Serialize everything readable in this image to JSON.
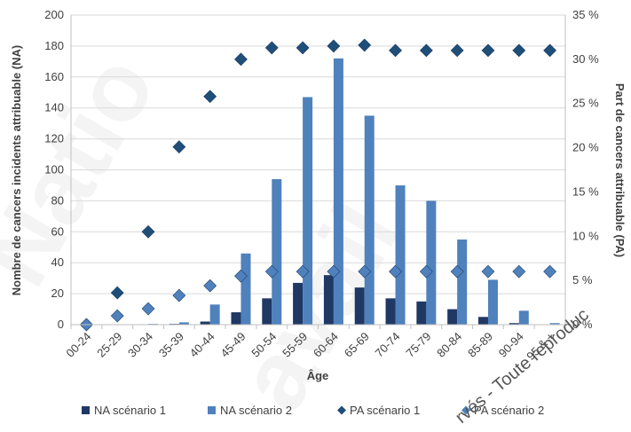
{
  "chart_data": {
    "type": "bar",
    "xlabel": "Âge",
    "ylabel": "Nombre de cancers incidents attribuable (NA)",
    "y2label": "Part de cancers attribuable (PA)",
    "ylim": [
      0,
      200
    ],
    "yticks": [
      0,
      20,
      40,
      60,
      80,
      100,
      120,
      140,
      160,
      180,
      200
    ],
    "y2lim": [
      0,
      35
    ],
    "y2ticks": [
      "0 %",
      "5 %",
      "10 %",
      "15 %",
      "20 %",
      "25 %",
      "30 %",
      "35 %"
    ],
    "grid": true,
    "legend_position": "bottom",
    "categories": [
      "00-24",
      "25-29",
      "30-34",
      "35-39",
      "40-44",
      "45-49",
      "50-54",
      "55-59",
      "60-64",
      "65-69",
      "70-74",
      "75-79",
      "80-84",
      "85-89",
      "90-94",
      "95 & +"
    ],
    "series": [
      {
        "name": "NA scénario 1",
        "kind": "bar",
        "axis": "left",
        "color": "#1f3864",
        "values": [
          0,
          0,
          0.3,
          0.5,
          2,
          8,
          17,
          27,
          32,
          24,
          17,
          15,
          10,
          5,
          1,
          0
        ]
      },
      {
        "name": "NA scénario 2",
        "kind": "bar",
        "axis": "left",
        "color": "#4f81bd",
        "values": [
          0,
          0.3,
          0.5,
          1.5,
          13,
          46,
          94,
          147,
          172,
          135,
          90,
          80,
          55,
          29,
          9,
          1
        ]
      },
      {
        "name": "PA scénario 1",
        "kind": "marker",
        "axis": "right",
        "color": "#1f4e79",
        "values": [
          0,
          3.6,
          10.5,
          20.1,
          25.8,
          30.0,
          31.3,
          31.3,
          31.5,
          31.6,
          31.0,
          31.0,
          31.0,
          31.0,
          31.0,
          31.0
        ]
      },
      {
        "name": "PA scénario 2",
        "kind": "marker",
        "axis": "right",
        "color": "#4f81bd",
        "values": [
          0,
          1.0,
          1.8,
          3.3,
          4.4,
          5.5,
          6.0,
          6.0,
          6.0,
          6.0,
          6.0,
          6.0,
          6.0,
          6.0,
          6.0,
          6.0
        ]
      }
    ]
  },
  "watermark": {
    "text1": "Natio",
    "text2": "avail",
    "text3": "rvés - Toute reproduc"
  }
}
